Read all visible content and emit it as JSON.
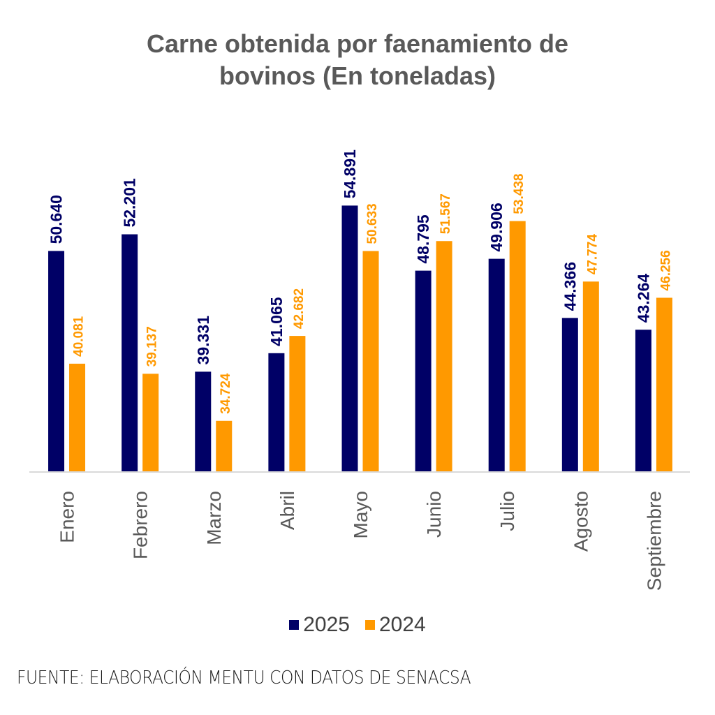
{
  "chart_data": {
    "type": "bar",
    "title": "Carne obtenida por faenamiento de bovinos (En toneladas)",
    "title_lines": [
      "Carne obtenida por faenamiento de",
      "bovinos (En toneladas)"
    ],
    "categories": [
      "Enero",
      "Febrero",
      "Marzo",
      "Abril",
      "Mayo",
      "Junio",
      "Julio",
      "Agosto",
      "Septiembre"
    ],
    "series": [
      {
        "name": "2025",
        "color": "#000066",
        "values": [
          50.64,
          52.201,
          39.331,
          41.065,
          54.891,
          48.795,
          49.906,
          44.366,
          43.264
        ],
        "labels": [
          "50.640",
          "52.201",
          "39.331",
          "41.065",
          "54.891",
          "48.795",
          "49.906",
          "44.366",
          "43.264"
        ]
      },
      {
        "name": "2024",
        "color": "#FF9900",
        "values": [
          40.081,
          39.137,
          34.724,
          42.682,
          50.633,
          51.567,
          53.438,
          47.774,
          46.256
        ],
        "labels": [
          "40.081",
          "39.137",
          "34.724",
          "42.682",
          "50.633",
          "51.567",
          "53.438",
          "47.774",
          "46.256"
        ]
      }
    ],
    "xlabel": "",
    "ylabel": "",
    "ylim": [
      30,
      58
    ],
    "grid": false,
    "legend_position": "bottom"
  },
  "source": "FUENTE: ELABORACIÓN MENTU CON DATOS DE SENACSA"
}
